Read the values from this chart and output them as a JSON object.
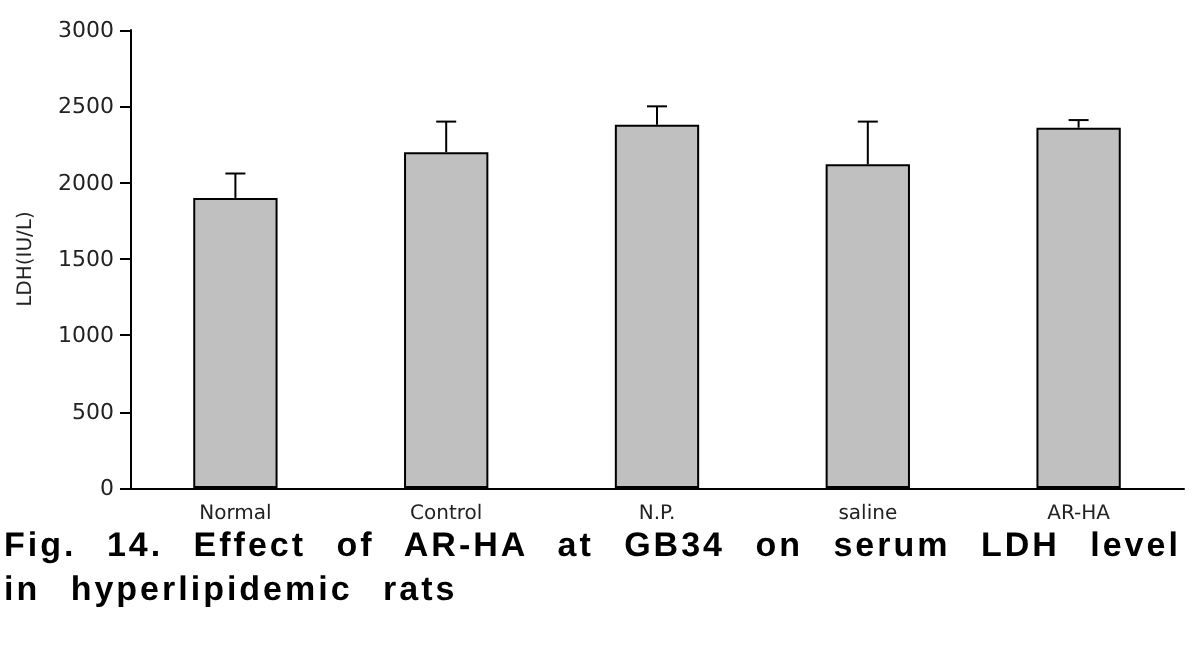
{
  "chart_data": {
    "type": "bar",
    "title": "Fig. 14. Effect of AR-HA at GB34 on serum LDH level in hyperlipidemic rats",
    "ylabel": "LDH(IU/L)",
    "categories": [
      "Normal",
      "Control",
      "N.P.",
      "saline",
      "AR-HA"
    ],
    "values": [
      1900,
      2200,
      2380,
      2120,
      2360
    ],
    "errors": [
      [
        1900,
        2060
      ],
      [
        2200,
        2400
      ],
      [
        2380,
        2500
      ],
      [
        2120,
        2400
      ],
      [
        2360,
        2410
      ]
    ],
    "color": "#c0c0c0",
    "ylim": [
      0,
      3000
    ],
    "yticks": [
      0,
      500,
      1000,
      1500,
      2000,
      2500,
      3000
    ],
    "grid": false
  }
}
